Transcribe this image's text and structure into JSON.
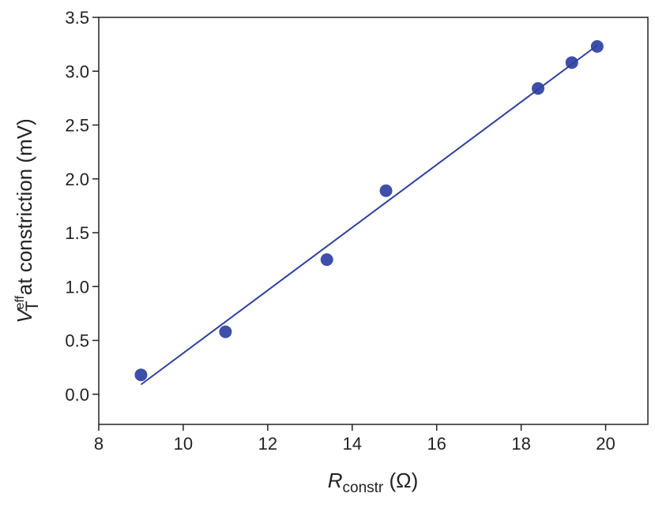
{
  "chart_data": {
    "type": "scatter",
    "x_label": {
      "main": "R",
      "sub": "constr",
      "rest": " (Ω)"
    },
    "y_label": {
      "main": "V",
      "sup": "eff",
      "sub": "T",
      "rest": " at constriction (mV)"
    },
    "series": [
      {
        "kind": "points",
        "color": "#3d4fa8",
        "x": [
          9,
          11,
          13.4,
          14.8,
          18.4,
          19.2,
          19.8
        ],
        "values": [
          0.18,
          0.58,
          1.25,
          1.89,
          2.84,
          3.08,
          3.23
        ]
      },
      {
        "kind": "fit",
        "color": "#2e3f9e",
        "x": [
          9,
          19.8
        ],
        "values": [
          0.09,
          3.24
        ]
      }
    ],
    "xlim": [
      8,
      21
    ],
    "ylim": [
      -0.28,
      3.5
    ],
    "xticks": [
      8,
      10,
      12,
      14,
      16,
      18,
      20
    ],
    "yticks": [
      {
        "value": 0,
        "label": "0.0"
      },
      0.5,
      {
        "value": 1,
        "label": "1.0"
      },
      1.5,
      {
        "value": 2,
        "label": "2.0"
      },
      2.5,
      {
        "value": 3,
        "label": "3.0"
      },
      3.5
    ]
  }
}
